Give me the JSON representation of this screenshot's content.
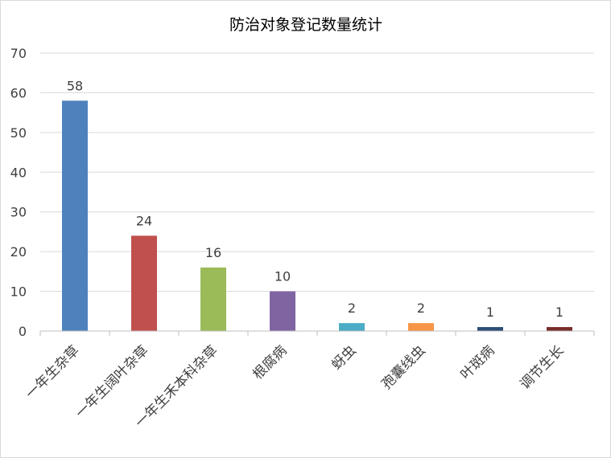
{
  "chart_data": {
    "type": "bar",
    "title": "防治对象登记数量统计",
    "xlabel": "",
    "ylabel": "",
    "ylim": [
      0,
      70
    ],
    "yticks": [
      0,
      10,
      20,
      30,
      40,
      50,
      60,
      70
    ],
    "grid": true,
    "legend": "none",
    "categories": [
      "一年生杂草",
      "一年生阔叶杂草",
      "一年生禾本科杂草",
      "根腐病",
      "蚜虫",
      "孢囊线虫",
      "叶斑病",
      "调节生长"
    ],
    "values": [
      58,
      24,
      16,
      10,
      2,
      2,
      1,
      1
    ],
    "colors": [
      "#4f81bd",
      "#c0504d",
      "#9bbb59",
      "#8064a2",
      "#4bacc6",
      "#f79646",
      "#2c4d75",
      "#772c2a"
    ]
  }
}
